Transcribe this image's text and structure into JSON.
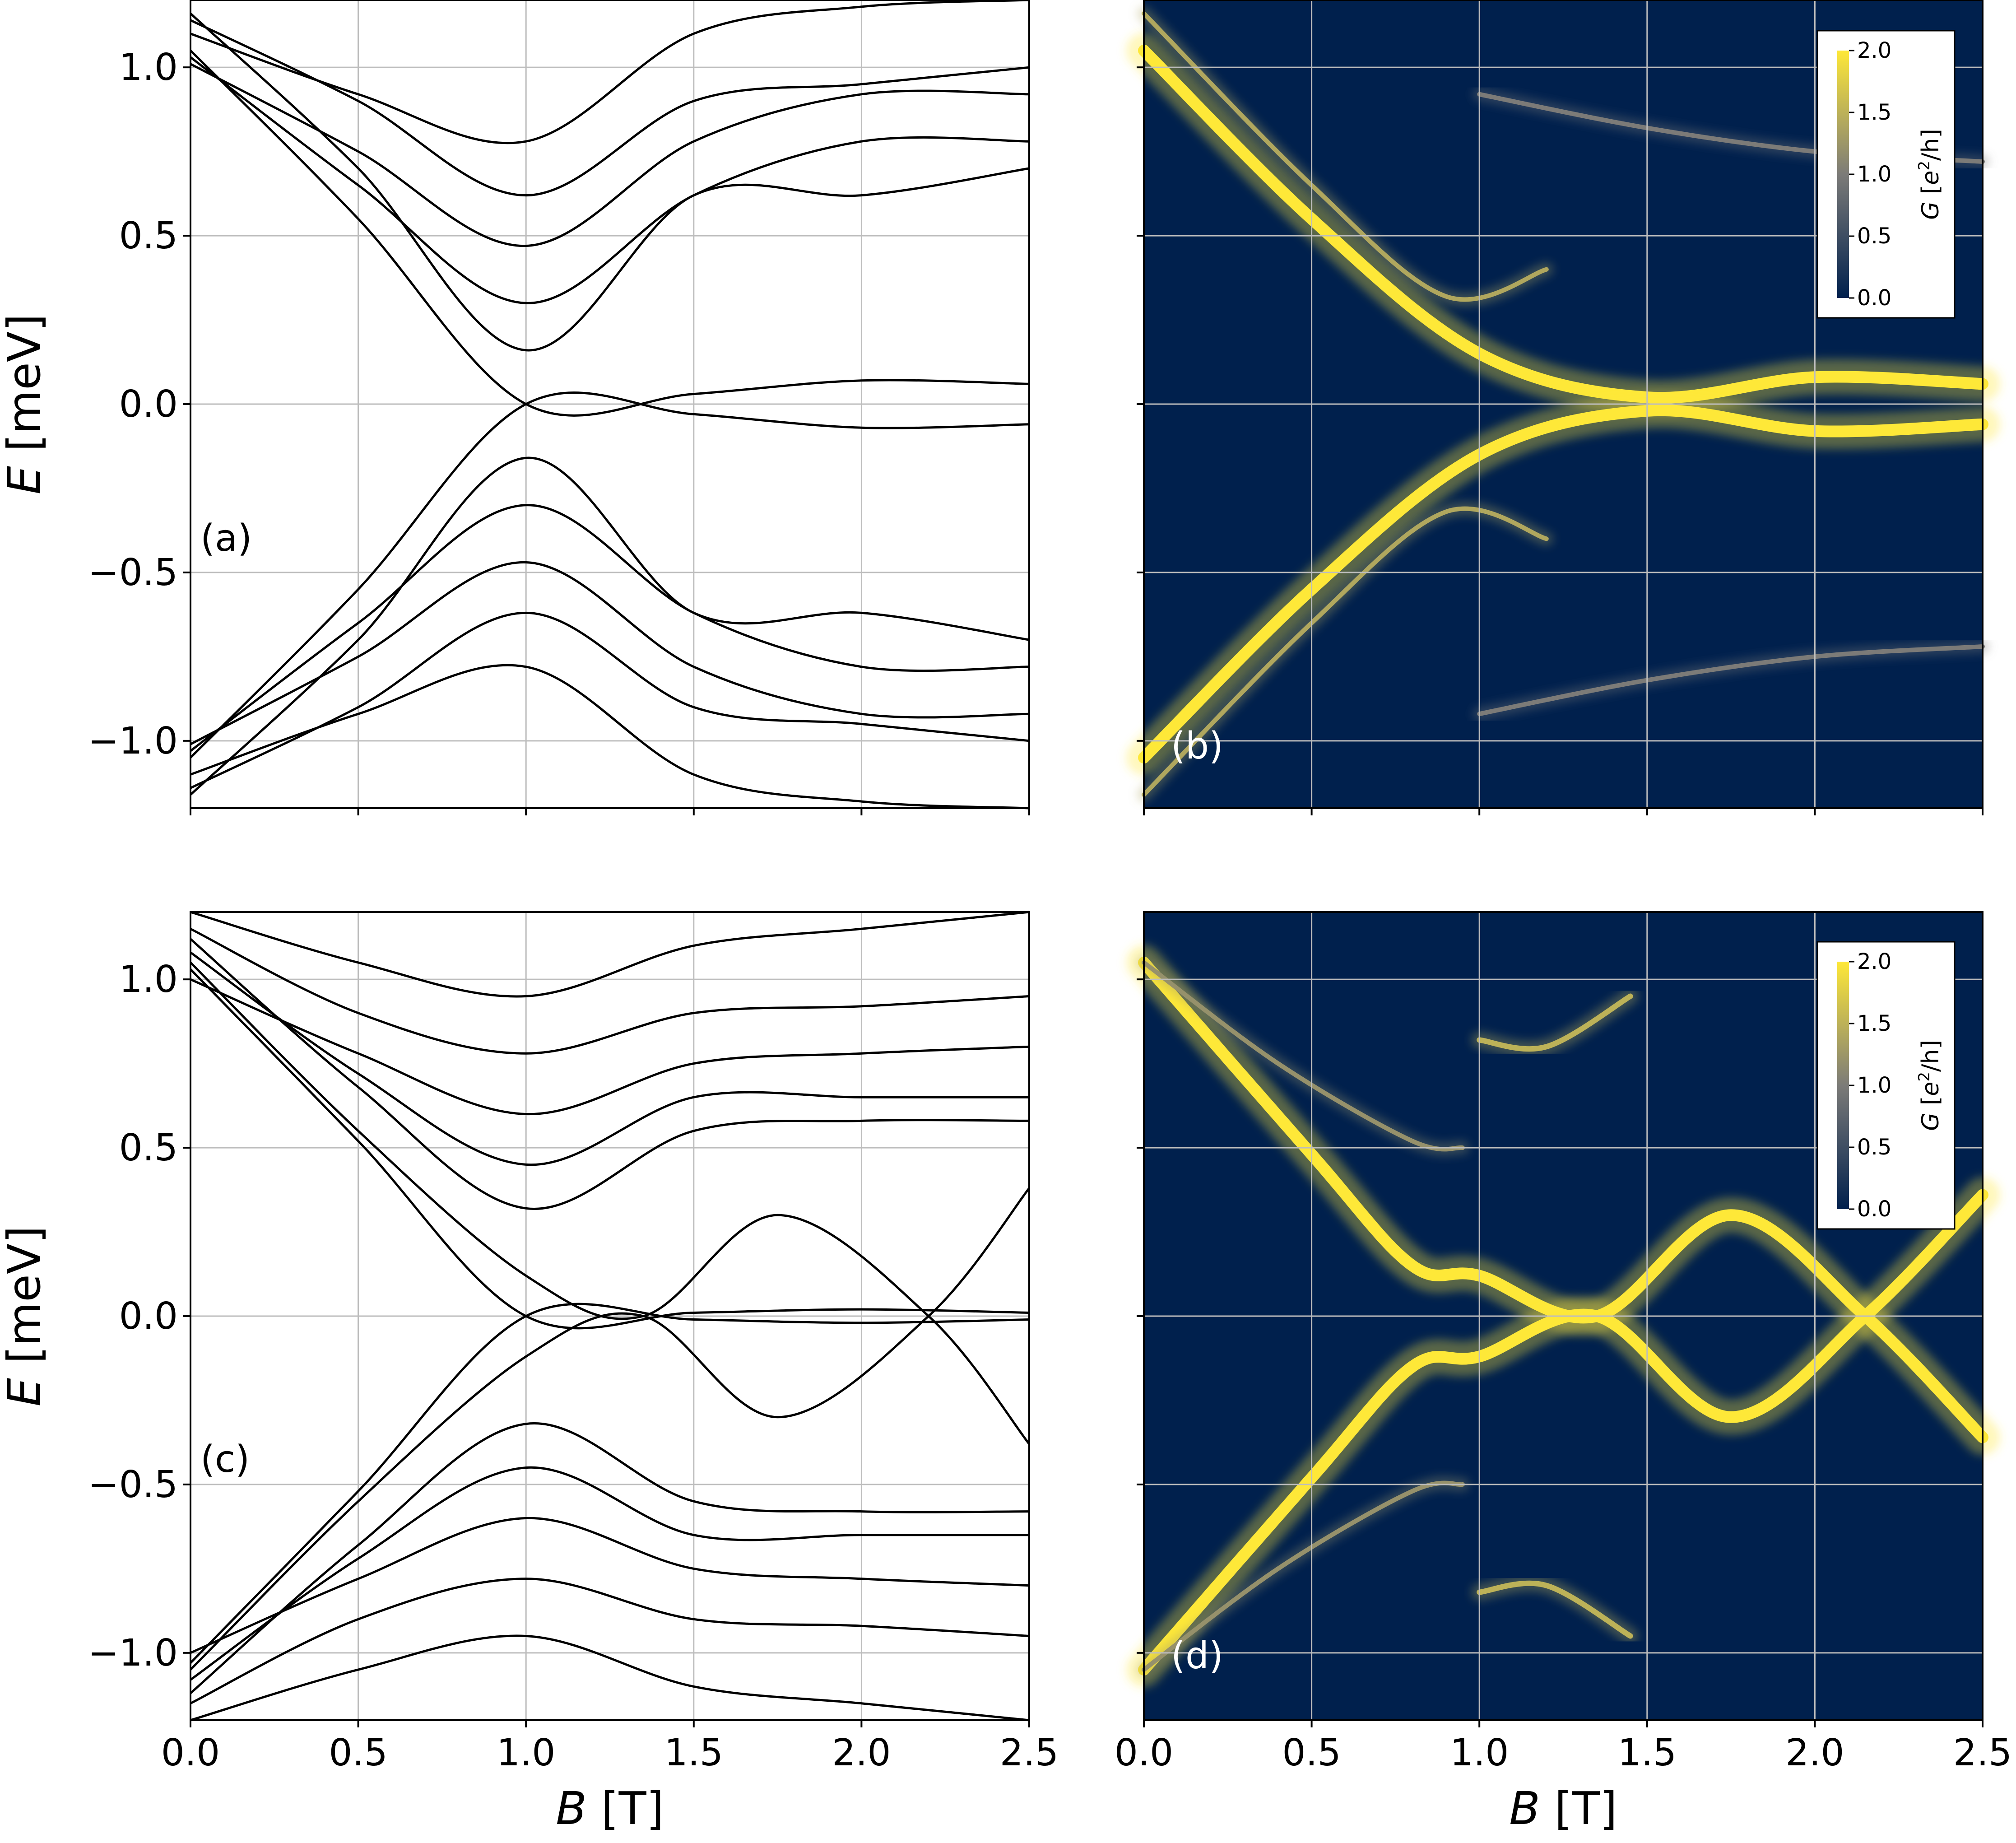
{
  "colors": {
    "band": "#000000",
    "grid": "#bdbdbd",
    "map_bg": "#00204d",
    "map_peak": "#fee838",
    "map_mid": "#7c7b78"
  },
  "axes": {
    "xlabel_var": "B",
    "xlabel_unit": " [T]",
    "ylabel_var": "E",
    "ylabel_unit": " [meV]"
  },
  "colorbar": {
    "label_prefix": "G [",
    "label_e": "e",
    "label_sup": "2",
    "label_suffix": "/h]",
    "ticks": [
      "0.0",
      "0.5",
      "1.0",
      "1.5",
      "2.0"
    ]
  },
  "chart_data": [
    {
      "id": "a",
      "type": "line",
      "panel_label": "(a)",
      "xlim": [
        0.0,
        2.5
      ],
      "ylim": [
        -1.2,
        1.2
      ],
      "x_ticks": [
        "0.0",
        "0.5",
        "1.0",
        "1.5",
        "2.0",
        "2.5"
      ],
      "y_ticks": [
        "−1.0",
        "−0.5",
        "0.0",
        "0.5",
        "1.0"
      ],
      "xlabel": "",
      "ylabel": "E [meV]",
      "grid": true,
      "series": [
        {
          "x": [
            0.0,
            0.5,
            1.0,
            1.5,
            2.0,
            2.5
          ],
          "values": [
            1.16,
            0.7,
            0.16,
            0.62,
            0.62,
            0.7
          ]
        },
        {
          "x": [
            0.0,
            0.5,
            1.0,
            1.5,
            2.0,
            2.5
          ],
          "values": [
            1.03,
            0.65,
            0.3,
            0.62,
            0.78,
            0.78
          ]
        },
        {
          "x": [
            0.0,
            0.5,
            1.0,
            1.5,
            2.0,
            2.5
          ],
          "values": [
            1.01,
            0.75,
            0.47,
            0.78,
            0.92,
            0.92
          ]
        },
        {
          "x": [
            0.0,
            0.5,
            1.0,
            1.5,
            2.0,
            2.5
          ],
          "values": [
            1.14,
            0.9,
            0.62,
            0.9,
            0.95,
            1.0
          ]
        },
        {
          "x": [
            0.0,
            0.5,
            1.0,
            1.5,
            2.0,
            2.5
          ],
          "values": [
            1.1,
            0.92,
            0.78,
            1.1,
            1.18,
            1.2
          ]
        },
        {
          "x": [
            0.0,
            0.5,
            1.0,
            1.5,
            2.0,
            2.5
          ],
          "values": [
            1.05,
            0.55,
            0.0,
            0.03,
            0.07,
            0.06
          ]
        },
        {
          "x": [
            0.0,
            0.5,
            1.0,
            1.5,
            2.0,
            2.5
          ],
          "values": [
            -1.05,
            -0.55,
            0.0,
            -0.03,
            -0.07,
            -0.06
          ]
        },
        {
          "x": [
            0.0,
            0.5,
            1.0,
            1.5,
            2.0,
            2.5
          ],
          "values": [
            -1.16,
            -0.7,
            -0.16,
            -0.62,
            -0.62,
            -0.7
          ]
        },
        {
          "x": [
            0.0,
            0.5,
            1.0,
            1.5,
            2.0,
            2.5
          ],
          "values": [
            -1.03,
            -0.65,
            -0.3,
            -0.62,
            -0.78,
            -0.78
          ]
        },
        {
          "x": [
            0.0,
            0.5,
            1.0,
            1.5,
            2.0,
            2.5
          ],
          "values": [
            -1.01,
            -0.75,
            -0.47,
            -0.78,
            -0.92,
            -0.92
          ]
        },
        {
          "x": [
            0.0,
            0.5,
            1.0,
            1.5,
            2.0,
            2.5
          ],
          "values": [
            -1.14,
            -0.9,
            -0.62,
            -0.9,
            -0.95,
            -1.0
          ]
        },
        {
          "x": [
            0.0,
            0.5,
            1.0,
            1.5,
            2.0,
            2.5
          ],
          "values": [
            -1.1,
            -0.92,
            -0.78,
            -1.1,
            -1.18,
            -1.2
          ]
        }
      ]
    },
    {
      "id": "b",
      "type": "heatmap",
      "panel_label": "(b)",
      "xlim": [
        0.0,
        2.5
      ],
      "ylim": [
        -1.2,
        1.2
      ],
      "x_ticks": [
        "0.0",
        "0.5",
        "1.0",
        "1.5",
        "2.0",
        "2.5"
      ],
      "y_ticks": [],
      "xlabel": "",
      "ylabel": "",
      "colorbar_range": [
        0.0,
        2.0
      ],
      "ridges": [
        {
          "x": [
            0.0,
            0.5,
            1.0,
            1.5,
            2.0,
            2.5
          ],
          "values": [
            1.05,
            0.55,
            0.15,
            0.02,
            0.08,
            0.06
          ],
          "g": 2.0,
          "width": 26
        },
        {
          "x": [
            0.0,
            0.5,
            1.0,
            1.5,
            2.0,
            2.5
          ],
          "values": [
            -1.05,
            -0.55,
            -0.15,
            -0.02,
            -0.08,
            -0.06
          ],
          "g": 2.0,
          "width": 26
        },
        {
          "x": [
            0.0,
            0.5,
            0.9,
            1.2
          ],
          "values": [
            1.16,
            0.65,
            0.32,
            0.4
          ],
          "g": 1.4,
          "width": 10
        },
        {
          "x": [
            0.0,
            0.5,
            0.9,
            1.2
          ],
          "values": [
            -1.16,
            -0.65,
            -0.32,
            -0.4
          ],
          "g": 1.4,
          "width": 10
        },
        {
          "x": [
            1.0,
            1.5,
            2.0,
            2.5
          ],
          "values": [
            0.92,
            0.82,
            0.75,
            0.72
          ],
          "g": 1.0,
          "width": 10
        },
        {
          "x": [
            1.0,
            1.5,
            2.0,
            2.5
          ],
          "values": [
            -0.92,
            -0.82,
            -0.75,
            -0.72
          ],
          "g": 1.0,
          "width": 10
        }
      ]
    },
    {
      "id": "c",
      "type": "line",
      "panel_label": "(c)",
      "xlim": [
        0.0,
        2.5
      ],
      "ylim": [
        -1.2,
        1.2
      ],
      "x_ticks": [
        "0.0",
        "0.5",
        "1.0",
        "1.5",
        "2.0",
        "2.5"
      ],
      "y_ticks": [
        "−1.0",
        "−0.5",
        "0.0",
        "0.5",
        "1.0"
      ],
      "xlabel": "B [T]",
      "ylabel": "E [meV]",
      "grid": true,
      "series": [
        {
          "x": [
            0.0,
            0.5,
            1.0,
            1.35,
            1.75,
            2.2,
            2.5
          ],
          "values": [
            1.05,
            0.55,
            0.12,
            0.0,
            0.3,
            0.0,
            -0.38
          ]
        },
        {
          "x": [
            0.0,
            0.5,
            1.0,
            1.35,
            1.75,
            2.2,
            2.5
          ],
          "values": [
            -1.05,
            -0.55,
            -0.12,
            0.0,
            -0.3,
            0.0,
            0.38
          ]
        },
        {
          "x": [
            0.0,
            0.5,
            1.0,
            1.5,
            2.0,
            2.5
          ],
          "values": [
            1.03,
            0.52,
            0.0,
            0.01,
            0.02,
            0.01
          ]
        },
        {
          "x": [
            0.0,
            0.5,
            1.0,
            1.5,
            2.0,
            2.5
          ],
          "values": [
            -1.03,
            -0.52,
            0.0,
            -0.01,
            -0.02,
            -0.01
          ]
        },
        {
          "x": [
            0.0,
            0.5,
            1.0,
            1.5,
            2.0,
            2.5
          ],
          "values": [
            1.12,
            0.68,
            0.32,
            0.55,
            0.58,
            0.58
          ]
        },
        {
          "x": [
            0.0,
            0.5,
            1.0,
            1.5,
            2.0,
            2.5
          ],
          "values": [
            1.08,
            0.72,
            0.45,
            0.65,
            0.65,
            0.65
          ]
        },
        {
          "x": [
            0.0,
            0.5,
            1.0,
            1.5,
            2.0,
            2.5
          ],
          "values": [
            1.0,
            0.78,
            0.6,
            0.75,
            0.78,
            0.8
          ]
        },
        {
          "x": [
            0.0,
            0.5,
            1.0,
            1.5,
            2.0,
            2.5
          ],
          "values": [
            1.15,
            0.9,
            0.78,
            0.9,
            0.92,
            0.95
          ]
        },
        {
          "x": [
            0.0,
            0.5,
            1.0,
            1.5,
            2.0,
            2.5
          ],
          "values": [
            1.2,
            1.05,
            0.95,
            1.1,
            1.15,
            1.2
          ]
        },
        {
          "x": [
            0.0,
            0.5,
            1.0,
            1.5,
            2.0,
            2.5
          ],
          "values": [
            -1.12,
            -0.68,
            -0.32,
            -0.55,
            -0.58,
            -0.58
          ]
        },
        {
          "x": [
            0.0,
            0.5,
            1.0,
            1.5,
            2.0,
            2.5
          ],
          "values": [
            -1.08,
            -0.72,
            -0.45,
            -0.65,
            -0.65,
            -0.65
          ]
        },
        {
          "x": [
            0.0,
            0.5,
            1.0,
            1.5,
            2.0,
            2.5
          ],
          "values": [
            -1.0,
            -0.78,
            -0.6,
            -0.75,
            -0.78,
            -0.8
          ]
        },
        {
          "x": [
            0.0,
            0.5,
            1.0,
            1.5,
            2.0,
            2.5
          ],
          "values": [
            -1.15,
            -0.9,
            -0.78,
            -0.9,
            -0.92,
            -0.95
          ]
        },
        {
          "x": [
            0.0,
            0.5,
            1.0,
            1.5,
            2.0,
            2.5
          ],
          "values": [
            -1.2,
            -1.05,
            -0.95,
            -1.1,
            -1.15,
            -1.2
          ]
        }
      ]
    },
    {
      "id": "d",
      "type": "heatmap",
      "panel_label": "(d)",
      "xlim": [
        0.0,
        2.5
      ],
      "ylim": [
        -1.2,
        1.2
      ],
      "x_ticks": [
        "0.0",
        "0.5",
        "1.0",
        "1.5",
        "2.0",
        "2.5"
      ],
      "y_ticks": [],
      "xlabel": "B [T]",
      "ylabel": "",
      "colorbar_range": [
        0.0,
        2.0
      ],
      "ridges": [
        {
          "x": [
            0.0,
            0.5,
            0.8,
            1.0,
            1.35,
            1.75,
            2.15,
            2.5
          ],
          "values": [
            1.05,
            0.48,
            0.15,
            0.12,
            0.0,
            0.3,
            0.0,
            -0.36
          ],
          "g": 2.0,
          "width": 26
        },
        {
          "x": [
            0.0,
            0.5,
            0.8,
            1.0,
            1.35,
            1.75,
            2.15,
            2.5
          ],
          "values": [
            -1.05,
            -0.48,
            -0.15,
            -0.12,
            0.0,
            -0.3,
            0.0,
            0.36
          ],
          "g": 2.0,
          "width": 26
        },
        {
          "x": [
            0.0,
            0.4,
            0.8,
            0.95
          ],
          "values": [
            1.05,
            0.75,
            0.52,
            0.5
          ],
          "g": 1.2,
          "width": 10
        },
        {
          "x": [
            0.0,
            0.4,
            0.8,
            0.95
          ],
          "values": [
            -1.05,
            -0.75,
            -0.52,
            -0.5
          ],
          "g": 1.2,
          "width": 10
        },
        {
          "x": [
            1.0,
            1.2,
            1.45
          ],
          "values": [
            0.82,
            0.8,
            0.95
          ],
          "g": 1.5,
          "width": 12
        },
        {
          "x": [
            1.0,
            1.2,
            1.45
          ],
          "values": [
            -0.82,
            -0.8,
            -0.95
          ],
          "g": 1.5,
          "width": 12
        }
      ]
    }
  ]
}
